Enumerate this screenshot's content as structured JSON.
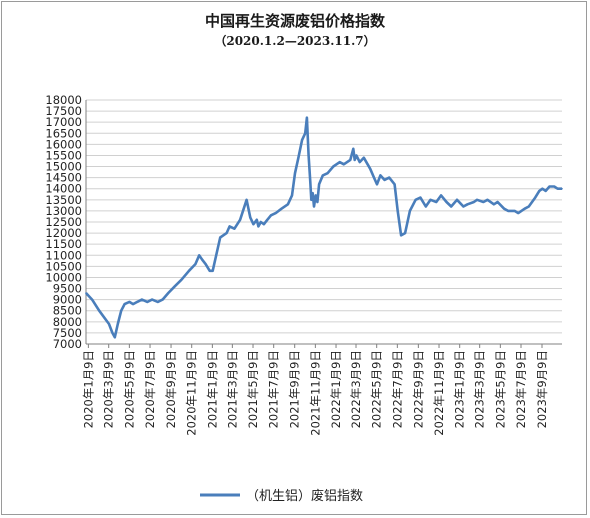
{
  "chart_data": {
    "type": "line",
    "title": "中国再生资源废铝价格指数",
    "subtitle": "（2020.1.2—2023.11.7）",
    "xlabel": "",
    "ylabel": "",
    "ylim": [
      7000,
      18000
    ],
    "ytick_step": 500,
    "grid": true,
    "legend_position": "bottom",
    "line_color": "#4a7ebb",
    "x_ticks": [
      "2020年1月9日",
      "2020年3月9日",
      "2020年5月9日",
      "2020年7月9日",
      "2020年9月9日",
      "2020年11月9日",
      "2021年1月9日",
      "2021年3月9日",
      "2021年5月9日",
      "2021年7月9日",
      "2021年9月9日",
      "2021年11月9日",
      "2022年1月9日",
      "2022年3月9日",
      "2022年5月9日",
      "2022年7月9日",
      "2022年9月9日",
      "2022年11月9日",
      "2023年1月9日",
      "2023年3月9日",
      "2023年5月9日",
      "2023年7月9日",
      "2023年9月9日"
    ],
    "series": [
      {
        "name": "（机生铝）废铝指数",
        "x": [
          "2020-01-02",
          "2020-01-20",
          "2020-02-10",
          "2020-03-10",
          "2020-03-20",
          "2020-03-27",
          "2020-04-05",
          "2020-04-15",
          "2020-04-25",
          "2020-05-09",
          "2020-05-20",
          "2020-06-01",
          "2020-06-15",
          "2020-07-01",
          "2020-07-15",
          "2020-08-01",
          "2020-08-15",
          "2020-09-01",
          "2020-09-20",
          "2020-10-10",
          "2020-11-01",
          "2020-11-20",
          "2020-12-01",
          "2020-12-10",
          "2020-12-20",
          "2021-01-01",
          "2021-01-10",
          "2021-02-01",
          "2021-02-20",
          "2021-03-01",
          "2021-03-15",
          "2021-04-01",
          "2021-04-20",
          "2021-05-01",
          "2021-05-10",
          "2021-05-20",
          "2021-05-25",
          "2021-06-01",
          "2021-06-10",
          "2021-06-20",
          "2021-07-01",
          "2021-07-15",
          "2021-08-01",
          "2021-08-20",
          "2021-09-01",
          "2021-09-10",
          "2021-09-20",
          "2021-10-01",
          "2021-10-10",
          "2021-10-15",
          "2021-10-20",
          "2021-10-25",
          "2021-10-28",
          "2021-11-01",
          "2021-11-05",
          "2021-11-10",
          "2021-11-15",
          "2021-11-20",
          "2021-12-01",
          "2021-12-15",
          "2022-01-01",
          "2022-01-20",
          "2022-02-01",
          "2022-02-20",
          "2022-03-01",
          "2022-03-05",
          "2022-03-10",
          "2022-03-20",
          "2022-04-01",
          "2022-04-20",
          "2022-05-01",
          "2022-05-10",
          "2022-05-20",
          "2022-06-01",
          "2022-06-15",
          "2022-07-01",
          "2022-07-10",
          "2022-07-20",
          "2022-08-01",
          "2022-08-15",
          "2022-09-01",
          "2022-09-15",
          "2022-10-01",
          "2022-10-15",
          "2022-11-01",
          "2022-11-15",
          "2022-12-01",
          "2022-12-15",
          "2023-01-01",
          "2023-01-20",
          "2023-02-01",
          "2023-02-20",
          "2023-03-01",
          "2023-03-20",
          "2023-04-01",
          "2023-04-20",
          "2023-05-01",
          "2023-05-20",
          "2023-06-01",
          "2023-06-20",
          "2023-07-01",
          "2023-07-20",
          "2023-08-01",
          "2023-08-20",
          "2023-09-01",
          "2023-09-10",
          "2023-09-20",
          "2023-10-01",
          "2023-10-15",
          "2023-10-25",
          "2023-11-07"
        ],
        "values": [
          9300,
          9000,
          8500,
          7900,
          7500,
          7300,
          7900,
          8500,
          8800,
          8900,
          8800,
          8900,
          9000,
          8900,
          9000,
          8900,
          9000,
          9300,
          9600,
          9900,
          10300,
          10600,
          11000,
          10800,
          10600,
          10300,
          10300,
          11800,
          12000,
          12300,
          12200,
          12600,
          13500,
          12700,
          12400,
          12600,
          12300,
          12500,
          12400,
          12600,
          12800,
          12900,
          13100,
          13300,
          13700,
          14700,
          15400,
          16200,
          16500,
          17200,
          15500,
          14300,
          13500,
          13800,
          13200,
          13700,
          13400,
          14200,
          14600,
          14700,
          15000,
          15200,
          15100,
          15300,
          15800,
          15300,
          15500,
          15200,
          15400,
          14900,
          14500,
          14200,
          14600,
          14400,
          14500,
          14200,
          13000,
          11900,
          12000,
          13000,
          13500,
          13600,
          13200,
          13500,
          13400,
          13700,
          13400,
          13200,
          13500,
          13200,
          13300,
          13400,
          13500,
          13400,
          13500,
          13300,
          13400,
          13100,
          13000,
          13000,
          12900,
          13100,
          13200,
          13600,
          13900,
          14000,
          13900,
          14100,
          14100,
          14000,
          14000
        ]
      }
    ]
  }
}
